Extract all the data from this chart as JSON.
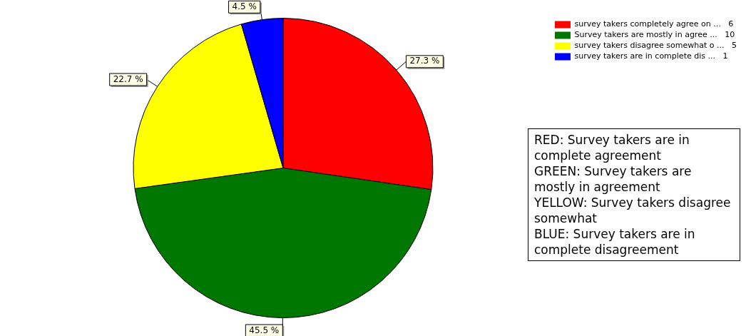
{
  "chart_data": {
    "type": "pie",
    "categories": [
      "survey takers completely agree on ...   6",
      "Survey takers are mostly in agree ...   10",
      "survey takers disagree somewhat o ...   5",
      "survey takers are in complete dis ...   1"
    ],
    "values": [
      27.3,
      45.5,
      22.7,
      4.5
    ],
    "colors": [
      "#ff0000",
      "#007700",
      "#ffff00",
      "#0000ff"
    ],
    "value_labels": [
      "27.3 %",
      "45.5 %",
      "22.7 %",
      "4.5 %"
    ],
    "legend": "top right",
    "annotations": [
      "RED:  Survey takers are in complete agreement",
      "GREEN:  Survey takers are mostly in agreement",
      "YELLOW:  Survey takers disagree somewhat",
      "BLUE:  Survey takers are in complete disagreement"
    ]
  }
}
